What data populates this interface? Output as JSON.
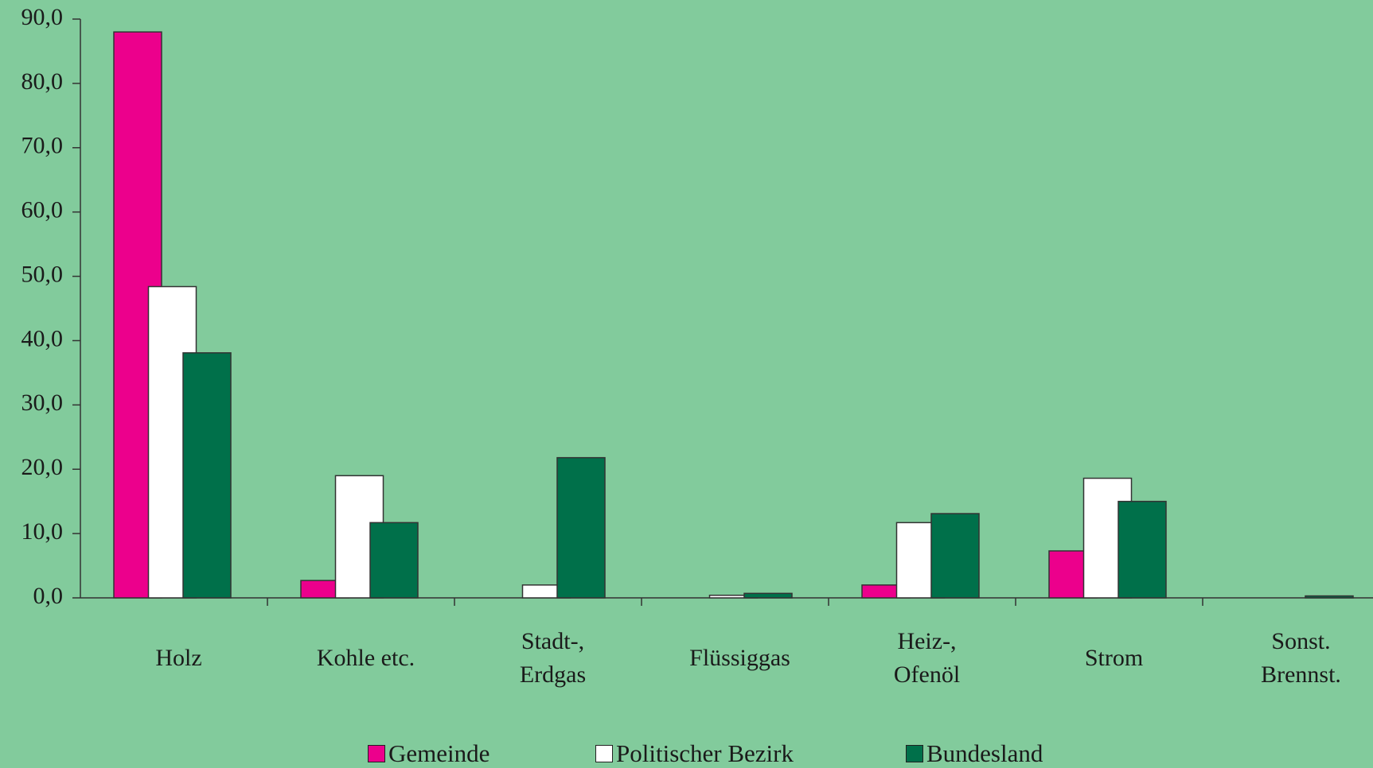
{
  "chart_data": {
    "type": "bar",
    "categories": [
      "Holz",
      "Kohle etc.",
      "Stadt-,\nErdgas",
      "Flüssiggas",
      "Heiz-,\nOfenöl",
      "Strom",
      "Sonst.\nBrennst."
    ],
    "series": [
      {
        "name": "Gemeinde",
        "color": "#ec008c",
        "values": [
          88.0,
          2.7,
          0,
          0,
          2.0,
          7.3,
          0
        ]
      },
      {
        "name": "Politischer Bezirk",
        "color": "#ffffff",
        "values": [
          48.4,
          19.0,
          2.0,
          0.4,
          11.7,
          18.6,
          0
        ]
      },
      {
        "name": "Bundesland",
        "color": "#00704a",
        "values": [
          38.1,
          11.7,
          21.8,
          0.7,
          13.1,
          15.0,
          0.3
        ]
      }
    ],
    "ylim": [
      0,
      90
    ],
    "yticks": [
      {
        "value": 0,
        "label": "0,0"
      },
      {
        "value": 10,
        "label": "10,0"
      },
      {
        "value": 20,
        "label": "20,0"
      },
      {
        "value": 30,
        "label": "30,0"
      },
      {
        "value": 40,
        "label": "40,0"
      },
      {
        "value": 50,
        "label": "50,0"
      },
      {
        "value": 60,
        "label": "60,0"
      },
      {
        "value": 70,
        "label": "70,0"
      },
      {
        "value": 80,
        "label": "80,0"
      },
      {
        "value": 90,
        "label": "90,0"
      }
    ]
  }
}
